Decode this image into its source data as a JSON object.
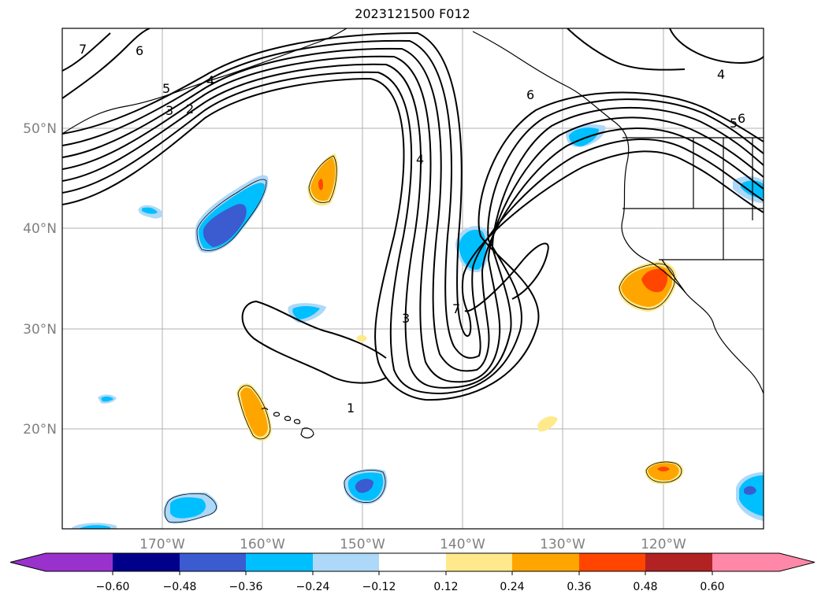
{
  "title": "2023121500 F012",
  "map": {
    "lat_labels": [
      "50°N",
      "40°N",
      "30°N",
      "20°N"
    ],
    "lon_labels": [
      "170°W",
      "160°W",
      "150°W",
      "140°W",
      "130°W",
      "120°W"
    ],
    "contour_labels": [
      "7",
      "6",
      "5",
      "4",
      "3",
      "2",
      "4",
      "4",
      "6",
      "5",
      "6",
      "7",
      "3",
      "1"
    ]
  },
  "colorbar": {
    "ticks": [
      "−0.60",
      "−0.48",
      "−0.36",
      "−0.24",
      "−0.12",
      "0.12",
      "0.24",
      "0.36",
      "0.48",
      "0.60"
    ],
    "colors": [
      "#9932cc",
      "#00008b",
      "#3b5bd0",
      "#00bfff",
      "#add8f8",
      "#ffffff",
      "#ffe98a",
      "#ffa500",
      "#ff4500",
      "#b22222",
      "#ff88a8"
    ]
  }
}
